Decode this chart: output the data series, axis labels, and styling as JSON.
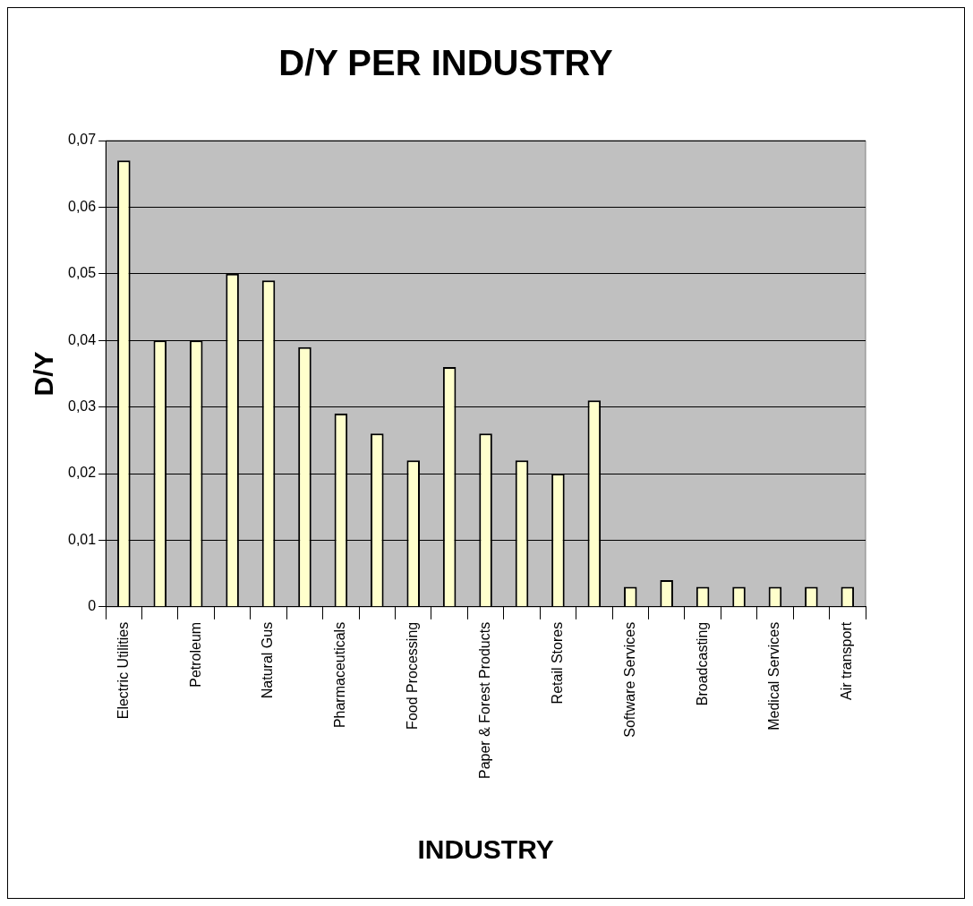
{
  "chart_data": {
    "type": "bar",
    "title": "D/Y PER INDUSTRY",
    "xlabel": "INDUSTRY",
    "ylabel": "D/Y",
    "categories": [
      "Electric Utilities",
      null,
      "Petroleum",
      null,
      "Natural Gus",
      null,
      "Pharmaceuticals",
      null,
      "Food Processing",
      null,
      "Paper & Forest Products",
      null,
      "Retail Stores",
      null,
      "Software Services",
      null,
      "Broadcasting",
      null,
      "Medical Services",
      null,
      "Air transport"
    ],
    "values": [
      0.067,
      0.04,
      0.04,
      0.05,
      0.049,
      0.039,
      0.029,
      0.026,
      0.022,
      0.036,
      0.026,
      0.022,
      0.02,
      0.031,
      0.003,
      0.004,
      0.003,
      0.003,
      0.003,
      0.003,
      0.003
    ],
    "color": "#ffffcc",
    "ylim": [
      0,
      0.07
    ],
    "yticks": [
      {
        "value": 0,
        "label": "0"
      },
      {
        "value": 0.01,
        "label": "0,01"
      },
      {
        "value": 0.02,
        "label": "0,02"
      },
      {
        "value": 0.03,
        "label": "0,03"
      },
      {
        "value": 0.04,
        "label": "0,04"
      },
      {
        "value": 0.05,
        "label": "0,05"
      },
      {
        "value": 0.06,
        "label": "0,06"
      },
      {
        "value": 0.07,
        "label": "0,07"
      }
    ],
    "grid": "y",
    "legend": false
  }
}
